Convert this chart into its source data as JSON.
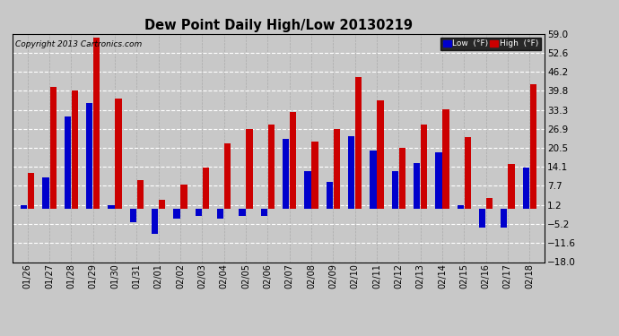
{
  "title": "Dew Point Daily High/Low 20130219",
  "copyright": "Copyright 2013 Cartronics.com",
  "background_color": "#c8c8c8",
  "low_color": "#0000cc",
  "high_color": "#cc0000",
  "yticks": [
    -18.0,
    -11.6,
    -5.2,
    1.2,
    7.7,
    14.1,
    20.5,
    26.9,
    33.3,
    39.8,
    46.2,
    52.6,
    59.0
  ],
  "ylim": [
    -18.0,
    59.0
  ],
  "dates": [
    "01/26",
    "01/27",
    "01/28",
    "01/29",
    "01/30",
    "01/31",
    "02/01",
    "02/02",
    "02/03",
    "02/04",
    "02/05",
    "02/06",
    "02/07",
    "02/08",
    "02/09",
    "02/10",
    "02/11",
    "02/12",
    "02/13",
    "02/14",
    "02/15",
    "02/16",
    "02/17",
    "02/18"
  ],
  "highs": [
    12.0,
    41.0,
    39.8,
    57.5,
    37.0,
    9.5,
    3.0,
    8.0,
    14.0,
    22.0,
    26.9,
    28.5,
    32.5,
    22.5,
    26.9,
    44.5,
    36.5,
    20.5,
    28.5,
    33.5,
    24.0,
    3.5,
    15.0,
    42.0
  ],
  "lows": [
    1.2,
    10.5,
    31.0,
    35.5,
    1.2,
    -4.5,
    -8.5,
    -3.5,
    -2.5,
    -3.5,
    -2.5,
    -2.5,
    23.5,
    12.5,
    9.0,
    24.5,
    19.5,
    12.5,
    15.5,
    19.0,
    1.2,
    -6.5,
    -6.5,
    14.0
  ]
}
